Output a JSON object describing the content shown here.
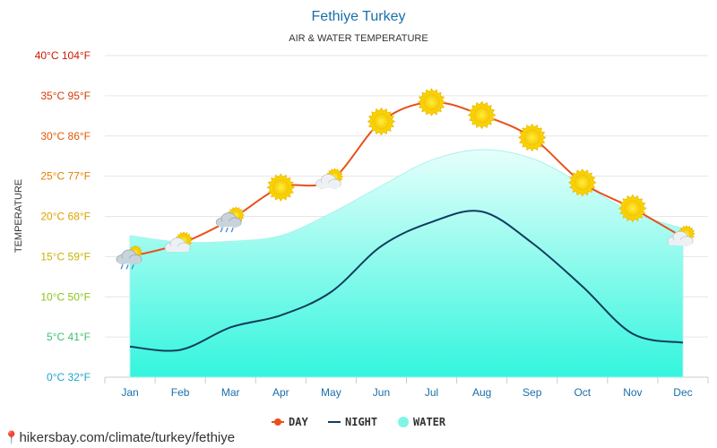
{
  "chart_data": {
    "type": "line",
    "title": "Fethiye Turkey",
    "subtitle": "AIR & WATER TEMPERATURE",
    "ylabel": "TEMPERATURE",
    "xlabel": "",
    "categories": [
      "Jan",
      "Feb",
      "Mar",
      "Apr",
      "May",
      "Jun",
      "Jul",
      "Aug",
      "Sep",
      "Oct",
      "Nov",
      "Dec"
    ],
    "ylim": [
      0,
      40
    ],
    "y_ticks": [
      {
        "value": 0,
        "label": "0°C 32°F",
        "color": "#19a5d1"
      },
      {
        "value": 5,
        "label": "5°C 41°F",
        "color": "#3fbf6f"
      },
      {
        "value": 10,
        "label": "10°C 50°F",
        "color": "#8cc21a"
      },
      {
        "value": 15,
        "label": "15°C 59°F",
        "color": "#c8b400"
      },
      {
        "value": 20,
        "label": "20°C 68°F",
        "color": "#e0a000"
      },
      {
        "value": 25,
        "label": "25°C 77°F",
        "color": "#e67e00"
      },
      {
        "value": 30,
        "label": "30°C 86°F",
        "color": "#e05a00"
      },
      {
        "value": 35,
        "label": "35°C 95°F",
        "color": "#d83a00"
      },
      {
        "value": 40,
        "label": "40°C 104°F",
        "color": "#cc1a00"
      }
    ],
    "grid": true,
    "legend_position": "bottom-center",
    "series": [
      {
        "name": "DAY",
        "color": "#e8501a",
        "values": [
          15.0,
          16.6,
          19.6,
          23.6,
          24.5,
          31.8,
          34.2,
          32.6,
          29.8,
          24.2,
          21.0,
          17.4
        ]
      },
      {
        "name": "NIGHT",
        "color": "#0f3d5e",
        "values": [
          3.8,
          3.4,
          6.2,
          7.7,
          10.6,
          16.3,
          19.3,
          20.6,
          16.7,
          11.3,
          5.4,
          4.3
        ]
      },
      {
        "name": "WATER",
        "color": "#7ff5e6",
        "values": [
          17.6,
          16.8,
          16.9,
          17.6,
          20.4,
          23.8,
          27.0,
          28.3,
          27.2,
          24.0,
          20.5,
          18.5
        ]
      }
    ],
    "day_icons": [
      "rain-cloud-icon",
      "sun-cloud-icon",
      "sun-cloud-rain-icon",
      "sun-icon",
      "sun-cloud-icon",
      "sun-icon",
      "sun-icon",
      "sun-icon",
      "sun-icon",
      "sun-icon",
      "sun-icon",
      "sun-cloud-icon"
    ]
  },
  "source": "hikersbay.com/climate/turkey/fethiye"
}
